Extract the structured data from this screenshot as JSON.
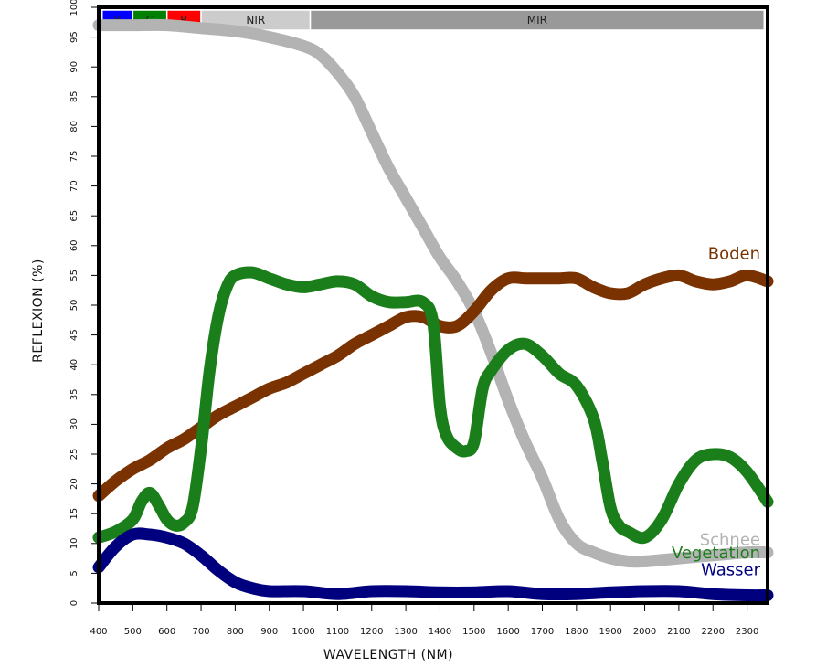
{
  "chart_data": {
    "type": "line",
    "xlabel": "WAVELENGTH (NM)",
    "ylabel": "REFLEXION (%)",
    "xlim": [
      400,
      2360
    ],
    "ylim": [
      0,
      100
    ],
    "xticks": [
      400,
      500,
      600,
      700,
      800,
      900,
      1000,
      1100,
      1200,
      1300,
      1400,
      1500,
      1600,
      1700,
      1800,
      1900,
      2000,
      2100,
      2200,
      2300
    ],
    "yticks": [
      0,
      5,
      10,
      15,
      20,
      25,
      30,
      35,
      40,
      45,
      50,
      55,
      60,
      65,
      70,
      75,
      80,
      85,
      90,
      95,
      100
    ],
    "grid": false,
    "bands": [
      {
        "label": "B",
        "from": 410,
        "to": 500,
        "color": "#0000ff"
      },
      {
        "label": "G",
        "from": 500,
        "to": 600,
        "color": "#008000"
      },
      {
        "label": "R",
        "from": 600,
        "to": 700,
        "color": "#ff0000"
      },
      {
        "label": "NIR",
        "from": 700,
        "to": 1020,
        "color": "#cccccc"
      },
      {
        "label": "MIR",
        "from": 1020,
        "to": 2350,
        "color": "#999999"
      }
    ],
    "series": [
      {
        "name": "Schnee",
        "color": "#b3b3b3",
        "x": [
          400,
          500,
          600,
          700,
          800,
          900,
          1000,
          1050,
          1100,
          1150,
          1200,
          1250,
          1300,
          1350,
          1400,
          1450,
          1500,
          1550,
          1600,
          1650,
          1700,
          1750,
          1800,
          1850,
          1900,
          1950,
          2000,
          2100,
          2200,
          2300,
          2360
        ],
        "y": [
          97,
          97,
          97,
          96.5,
          96,
          95,
          93.5,
          92,
          89,
          85,
          79,
          73,
          68,
          63,
          58,
          54,
          49,
          42,
          34,
          27,
          21,
          14,
          10,
          8.5,
          7.5,
          7,
          7,
          7.5,
          8,
          8.5,
          8.5
        ]
      },
      {
        "name": "Boden",
        "color": "#7a3300",
        "x": [
          400,
          450,
          500,
          550,
          600,
          650,
          700,
          750,
          800,
          850,
          900,
          950,
          1000,
          1050,
          1100,
          1150,
          1200,
          1250,
          1300,
          1350,
          1400,
          1450,
          1500,
          1550,
          1600,
          1650,
          1700,
          1750,
          1800,
          1850,
          1900,
          1950,
          2000,
          2050,
          2100,
          2150,
          2200,
          2250,
          2300,
          2360
        ],
        "y": [
          18,
          20.5,
          22.5,
          24,
          26,
          27.5,
          29.5,
          31.5,
          33,
          34.5,
          36,
          37,
          38.5,
          40,
          41.5,
          43.5,
          45,
          46.5,
          48,
          48,
          46.5,
          46.5,
          49,
          52.5,
          54.5,
          54.5,
          54.5,
          54.5,
          54.5,
          53,
          52,
          52,
          53.5,
          54.5,
          55,
          54,
          53.5,
          54,
          55,
          54
        ]
      },
      {
        "name": "Vegetation",
        "color": "#1a7f1a",
        "x": [
          400,
          450,
          500,
          525,
          550,
          575,
          600,
          625,
          650,
          675,
          700,
          725,
          750,
          775,
          800,
          850,
          900,
          950,
          1000,
          1050,
          1100,
          1150,
          1200,
          1250,
          1300,
          1350,
          1380,
          1400,
          1420,
          1450,
          1475,
          1500,
          1525,
          1550,
          1600,
          1650,
          1700,
          1750,
          1800,
          1850,
          1875,
          1900,
          1925,
          1950,
          2000,
          2050,
          2100,
          2150,
          2200,
          2250,
          2300,
          2360
        ],
        "y": [
          11,
          12,
          14,
          17,
          18.5,
          16.5,
          14,
          13,
          13.5,
          16,
          26,
          39,
          48,
          53,
          55,
          55.5,
          54.5,
          53.5,
          53,
          53.5,
          54,
          53.5,
          51.5,
          50.5,
          50.5,
          50.5,
          47,
          33,
          28,
          26,
          25.5,
          27,
          36,
          39,
          42.5,
          43.5,
          41.5,
          38.5,
          36.5,
          31,
          24,
          16,
          13,
          12,
          11,
          14,
          20,
          24,
          25,
          24.5,
          22,
          17
        ]
      },
      {
        "name": "Wasser",
        "color": "#00007f",
        "x": [
          400,
          450,
          500,
          550,
          600,
          650,
          700,
          750,
          800,
          850,
          900,
          1000,
          1100,
          1200,
          1300,
          1400,
          1500,
          1600,
          1700,
          1800,
          1900,
          2000,
          2100,
          2200,
          2300,
          2360
        ],
        "y": [
          6,
          9.5,
          11.5,
          11.5,
          11,
          10,
          8,
          5.5,
          3.5,
          2.5,
          2,
          2,
          1.5,
          2,
          2,
          1.8,
          1.8,
          2,
          1.5,
          1.5,
          1.8,
          2,
          2,
          1.5,
          1.3,
          1.3
        ]
      }
    ]
  }
}
